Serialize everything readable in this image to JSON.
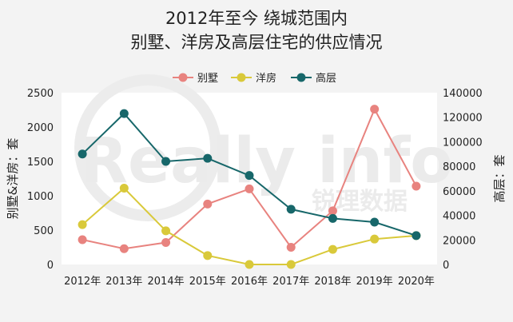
{
  "chart_data": {
    "type": "line",
    "title_lines": [
      "2012年至今 绕城范围内",
      "别墅、洋房及高层住宅的供应情况"
    ],
    "categories": [
      "2012年",
      "2013年",
      "2014年",
      "2015年",
      "2016年",
      "2017年",
      "2018年",
      "2019年",
      "2020年"
    ],
    "series": [
      {
        "name": "别墅",
        "axis": "left",
        "color": "#e8837f",
        "values": [
          360,
          230,
          320,
          880,
          1100,
          250,
          780,
          2260,
          1140
        ]
      },
      {
        "name": "洋房",
        "axis": "left",
        "color": "#d9c93a",
        "values": [
          580,
          1110,
          490,
          130,
          0,
          0,
          220,
          370,
          420
        ]
      },
      {
        "name": "高层",
        "axis": "right",
        "color": "#17676a",
        "values": [
          90000,
          123000,
          84000,
          86500,
          72500,
          45000,
          37500,
          34500,
          23500
        ]
      }
    ],
    "y_left": {
      "label": "别墅&洋房：套",
      "ylim": [
        0,
        2500
      ],
      "ticks": [
        0,
        500,
        1000,
        1500,
        2000,
        2500
      ],
      "tick_labels": [
        "0",
        "500",
        "1000",
        "1500",
        "2000",
        "2500"
      ]
    },
    "y_right": {
      "label": "高层：套",
      "ylim": [
        0,
        140000
      ],
      "ticks": [
        0,
        20000,
        40000,
        60000,
        80000,
        100000,
        120000,
        140000
      ],
      "tick_labels": [
        "0",
        "20000",
        "40000",
        "60000",
        "80000",
        "100000",
        "120000",
        "140000"
      ]
    },
    "legend_position": "top-center",
    "grid": false,
    "plot_background": "#ffffff",
    "watermark": "Really info 锐理数据"
  }
}
